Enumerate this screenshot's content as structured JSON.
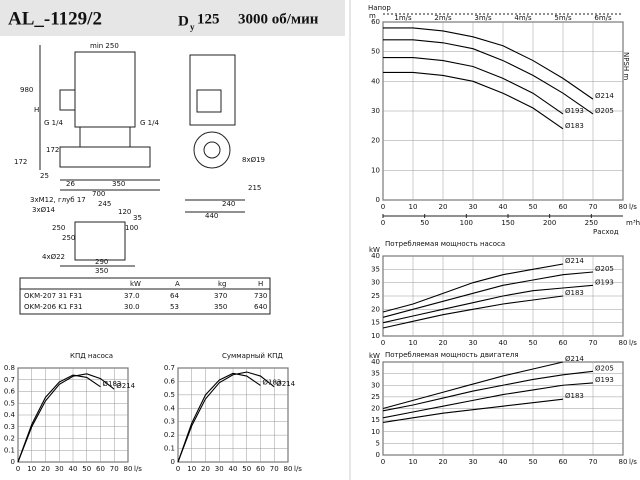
{
  "header": {
    "title": "AL_-1129/2",
    "dn": "D",
    "dn_sub": "y",
    "dn_value": "125",
    "speed": "3000 об/мин"
  },
  "drawing": {
    "labels": [
      "min 250",
      "980",
      "H",
      "G 1/4",
      "G 1/4",
      "172",
      "172",
      "25",
      "26",
      "350",
      "700",
      "3xM12, глуб 17",
      "3xØ14",
      "245",
      "120",
      "100",
      "35",
      "250",
      "250",
      "4xØ22",
      "290",
      "350",
      "8xØ19",
      "240",
      "440",
      "215"
    ]
  },
  "table": {
    "header": [
      "kW",
      "A",
      "kg",
      "H"
    ],
    "rows": [
      [
        "OKM-207 31 F31",
        "37.0",
        "64",
        "370",
        "730"
      ],
      [
        "OKM-206 K1 F31",
        "30.0",
        "53",
        "350",
        "640"
      ]
    ]
  },
  "chart_data": [
    {
      "type": "line",
      "title": "КПД насоса",
      "x": [
        0,
        10,
        20,
        30,
        40,
        50,
        60,
        70
      ],
      "x_unit": "l/s",
      "xlim": [
        0,
        80
      ],
      "xticks": [
        0,
        10,
        20,
        30,
        40,
        50,
        60,
        70,
        80
      ],
      "ylim": [
        0,
        0.8
      ],
      "yticks": [
        0,
        0.1,
        0.2,
        0.3,
        0.4,
        0.5,
        0.6,
        0.7,
        0.8
      ],
      "grid": true,
      "series": [
        {
          "name": "Ø214",
          "color": "#000000",
          "values": [
            0,
            0.3,
            0.52,
            0.66,
            0.73,
            0.75,
            0.71,
            0.62
          ]
        },
        {
          "name": "Ø183",
          "color": "#000000",
          "values": [
            0,
            0.32,
            0.55,
            0.68,
            0.74,
            0.72,
            0.64,
            null
          ]
        }
      ]
    },
    {
      "type": "line",
      "title": "Суммарный КПД",
      "x": [
        0,
        10,
        20,
        30,
        40,
        50,
        60,
        70
      ],
      "x_unit": "l/s",
      "xlim": [
        0,
        80
      ],
      "xticks": [
        0,
        10,
        20,
        30,
        40,
        50,
        60,
        70,
        80
      ],
      "ylim": [
        0,
        0.7
      ],
      "yticks": [
        0,
        0.1,
        0.2,
        0.3,
        0.4,
        0.5,
        0.6,
        0.7
      ],
      "grid": true,
      "series": [
        {
          "name": "Ø214",
          "color": "#000000",
          "values": [
            0,
            0.27,
            0.47,
            0.59,
            0.65,
            0.67,
            0.64,
            0.56
          ]
        },
        {
          "name": "Ø183",
          "color": "#000000",
          "values": [
            0,
            0.29,
            0.5,
            0.61,
            0.66,
            0.64,
            0.57,
            null
          ]
        }
      ]
    },
    {
      "type": "line",
      "title": "Напор",
      "y_unit": "m",
      "y2_label": "NPSH m",
      "x_label": "Расход",
      "x": [
        0,
        10,
        20,
        30,
        40,
        50,
        60,
        70
      ],
      "x_unit": "l/s",
      "xlim": [
        0,
        80
      ],
      "xticks": [
        0,
        10,
        20,
        30,
        40,
        50,
        60,
        70,
        80
      ],
      "ylim": [
        0,
        60
      ],
      "yticks": [
        0,
        10,
        20,
        30,
        40,
        50,
        60
      ],
      "x2lim": [
        0,
        288
      ],
      "x2ticks": [
        0,
        50,
        100,
        150,
        200,
        250
      ],
      "x2_unit": "m³h",
      "velocity_labels": [
        "1m/s",
        "2m/s",
        "3m/s",
        "4m/s",
        "5m/s",
        "6m/s"
      ],
      "grid": true,
      "series": [
        {
          "name": "Ø214",
          "color": "#000000",
          "values": [
            58,
            58,
            57,
            55,
            52,
            47,
            41,
            34
          ]
        },
        {
          "name": "Ø205",
          "color": "#000000",
          "values": [
            54,
            54,
            53,
            51,
            47,
            42,
            36,
            29
          ]
        },
        {
          "name": "Ø193",
          "color": "#000000",
          "values": [
            48,
            48,
            47,
            45,
            41,
            36,
            29,
            null
          ]
        },
        {
          "name": "Ø183",
          "color": "#000000",
          "values": [
            43,
            43,
            42,
            40,
            36,
            31,
            24,
            null
          ]
        }
      ]
    },
    {
      "type": "line",
      "title": "Потребляемая мощность насоса",
      "y_unit": "kW",
      "x": [
        0,
        10,
        20,
        30,
        40,
        50,
        60,
        70
      ],
      "x_unit": "l/s",
      "xlim": [
        0,
        80
      ],
      "xticks": [
        0,
        10,
        20,
        30,
        40,
        50,
        60,
        70,
        80
      ],
      "ylim": [
        10,
        40
      ],
      "yticks": [
        10,
        15,
        20,
        25,
        30,
        35,
        40
      ],
      "grid": true,
      "series": [
        {
          "name": "Ø214",
          "color": "#000000",
          "values": [
            19,
            22,
            26,
            30,
            33,
            35,
            37,
            null
          ]
        },
        {
          "name": "Ø205",
          "color": "#000000",
          "values": [
            17,
            20,
            23,
            26,
            29,
            31,
            33,
            34
          ]
        },
        {
          "name": "Ø193",
          "color": "#000000",
          "values": [
            15,
            17.5,
            20,
            22.5,
            25,
            27,
            28,
            29
          ]
        },
        {
          "name": "Ø183",
          "color": "#000000",
          "values": [
            13,
            15.5,
            18,
            20,
            22,
            23.5,
            25,
            null
          ]
        }
      ]
    },
    {
      "type": "line",
      "title": "Потребляемая мощность двигателя",
      "y_unit": "kW",
      "x": [
        0,
        10,
        20,
        30,
        40,
        50,
        60,
        70
      ],
      "x_unit": "l/s",
      "xlim": [
        0,
        80
      ],
      "xticks": [
        0,
        10,
        20,
        30,
        40,
        50,
        60,
        70,
        80
      ],
      "ylim": [
        0,
        40
      ],
      "yticks": [
        0,
        5,
        10,
        15,
        20,
        25,
        30,
        35,
        40
      ],
      "grid": true,
      "series": [
        {
          "name": "Ø214",
          "color": "#000000",
          "values": [
            20,
            23.5,
            27,
            30.5,
            34,
            37,
            40,
            null
          ]
        },
        {
          "name": "Ø205",
          "color": "#000000",
          "values": [
            19,
            21.5,
            24.5,
            27.5,
            30,
            32.5,
            34.5,
            36
          ]
        },
        {
          "name": "Ø193",
          "color": "#000000",
          "values": [
            16,
            18.5,
            21,
            23.5,
            26,
            28,
            30,
            31
          ]
        },
        {
          "name": "Ø183",
          "color": "#000000",
          "values": [
            14,
            16,
            18,
            19.5,
            21,
            22.5,
            24,
            null
          ]
        }
      ]
    }
  ]
}
